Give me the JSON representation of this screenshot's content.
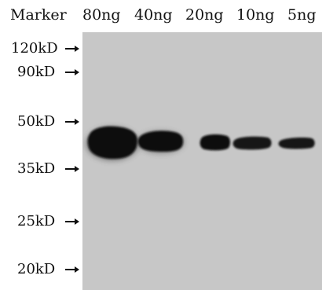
{
  "header": {
    "marker": "Marker",
    "lanes": [
      "80ng",
      "40ng",
      "20ng",
      "10ng",
      "5ng"
    ]
  },
  "markers": [
    "120kD",
    "90kD",
    "50kD",
    "35kD",
    "25kD",
    "20kD"
  ],
  "colors": {
    "membrane": "#c7c7c7",
    "band": "#0e0e0e",
    "text": "#111111"
  }
}
